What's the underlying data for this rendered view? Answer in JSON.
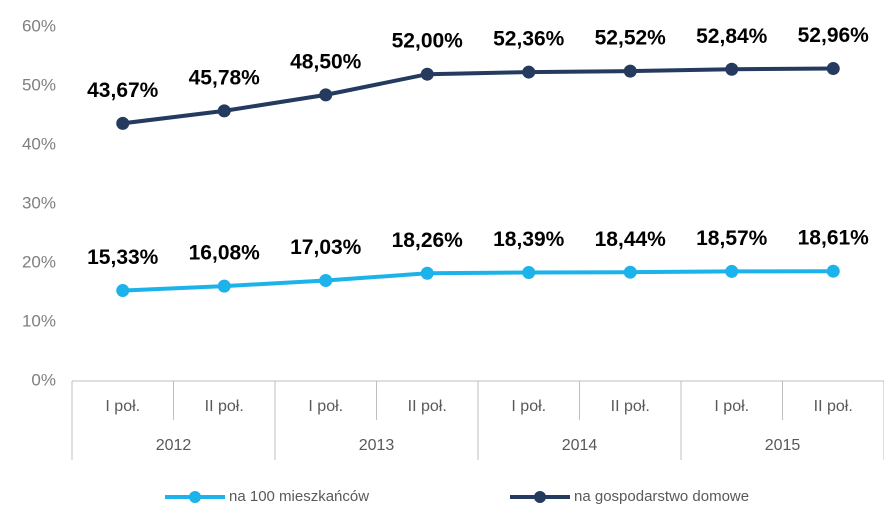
{
  "chart_data": {
    "type": "line",
    "categories": [
      "I poł.",
      "II poł.",
      "I poł.",
      "II poł.",
      "I poł.",
      "II poł.",
      "I poł.",
      "II poł."
    ],
    "groups": [
      "2012",
      "2013",
      "2014",
      "2015"
    ],
    "series": [
      {
        "name": "na 100 mieszkańców",
        "color": "#1cb2ea",
        "values": [
          15.33,
          16.08,
          17.03,
          18.26,
          18.39,
          18.44,
          18.57,
          18.61
        ],
        "value_labels": [
          "15,33%",
          "16,08%",
          "17,03%",
          "18,26%",
          "18,39%",
          "18,44%",
          "18,57%",
          "18,61%"
        ]
      },
      {
        "name": "na gospodarstwo domowe",
        "color": "#243a5e",
        "values": [
          43.67,
          45.78,
          48.5,
          52.0,
          52.36,
          52.52,
          52.84,
          52.96
        ],
        "value_labels": [
          "43,67%",
          "45,78%",
          "48,50%",
          "52,00%",
          "52,36%",
          "52,52%",
          "52,84%",
          "52,96%"
        ]
      }
    ],
    "ylim": [
      0,
      60
    ],
    "yticks": [
      {
        "value": 0,
        "label": "0%"
      },
      {
        "value": 10,
        "label": "10%"
      },
      {
        "value": 20,
        "label": "20%"
      },
      {
        "value": 30,
        "label": "30%"
      },
      {
        "value": 40,
        "label": "40%"
      },
      {
        "value": 50,
        "label": "50%"
      },
      {
        "value": 60,
        "label": "60%"
      }
    ],
    "grid": false,
    "legend": "bottom"
  }
}
